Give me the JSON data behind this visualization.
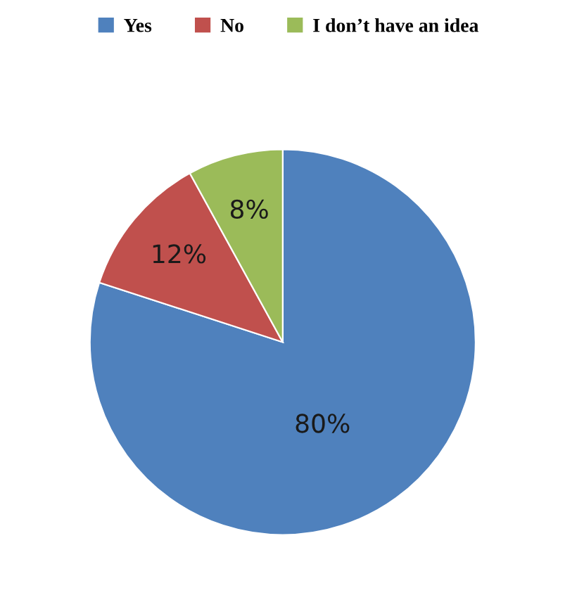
{
  "chart_data": {
    "type": "pie",
    "categories": [
      "Yes",
      "No",
      "I don’t have an idea"
    ],
    "values": [
      80,
      12,
      8
    ],
    "colors": [
      "#4f81bd",
      "#c0504d",
      "#9bbb59"
    ],
    "value_labels": [
      "80%",
      "12%",
      "8%"
    ],
    "legend": "top"
  }
}
